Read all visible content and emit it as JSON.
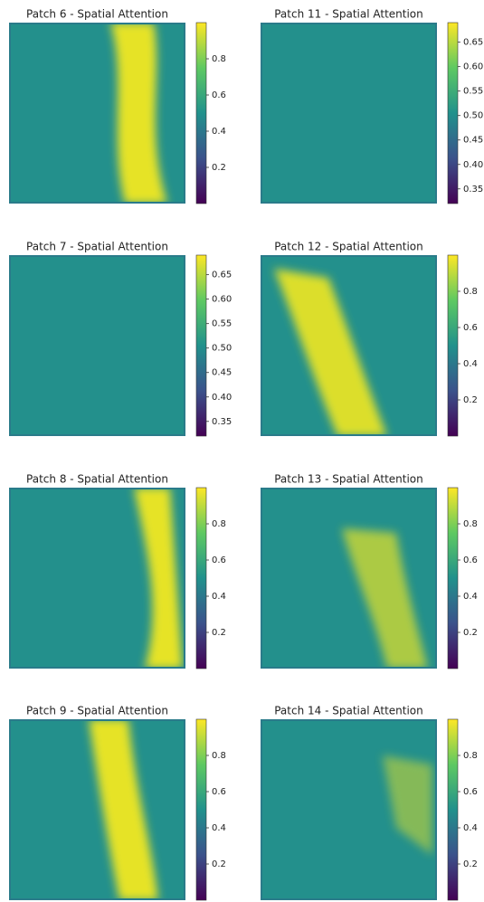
{
  "chart_data": [
    {
      "type": "heatmap",
      "title": "Patch 6 - Spatial Attention",
      "clim": [
        0,
        1
      ],
      "cticks": [
        0.2,
        0.4,
        0.6,
        0.8
      ]
    },
    {
      "type": "heatmap",
      "title": "Patch 11 - Spatial Attention",
      "clim": [
        0.32,
        0.69
      ],
      "cticks": [
        0.35,
        {
          "value": 0.4,
          "label": "0.40"
        },
        0.45,
        {
          "value": 0.5,
          "label": "0.50"
        },
        0.55,
        {
          "value": 0.6,
          "label": "0.60"
        },
        0.65
      ]
    },
    {
      "type": "heatmap",
      "title": "Patch 7 - Spatial Attention",
      "clim": [
        0.32,
        0.69
      ],
      "cticks": [
        0.35,
        {
          "value": 0.4,
          "label": "0.40"
        },
        0.45,
        {
          "value": 0.5,
          "label": "0.50"
        },
        0.55,
        {
          "value": 0.6,
          "label": "0.60"
        },
        0.65
      ]
    },
    {
      "type": "heatmap",
      "title": "Patch 12 - Spatial Attention",
      "clim": [
        0,
        1
      ],
      "cticks": [
        0.2,
        0.4,
        0.6,
        0.8
      ]
    },
    {
      "type": "heatmap",
      "title": "Patch 8 - Spatial Attention",
      "clim": [
        0,
        1
      ],
      "cticks": [
        0.2,
        0.4,
        0.6,
        0.8
      ]
    },
    {
      "type": "heatmap",
      "title": "Patch 13 - Spatial Attention",
      "clim": [
        0,
        1
      ],
      "cticks": [
        0.2,
        0.4,
        0.6,
        0.8
      ]
    },
    {
      "type": "heatmap",
      "title": "Patch 9 - Spatial Attention",
      "clim": [
        0,
        1
      ],
      "cticks": [
        0.2,
        0.4,
        0.6,
        0.8
      ]
    },
    {
      "type": "heatmap",
      "title": "Patch 14 - Spatial Attention",
      "clim": [
        0,
        1
      ],
      "cticks": [
        0.2,
        0.4,
        0.6,
        0.8
      ]
    }
  ]
}
